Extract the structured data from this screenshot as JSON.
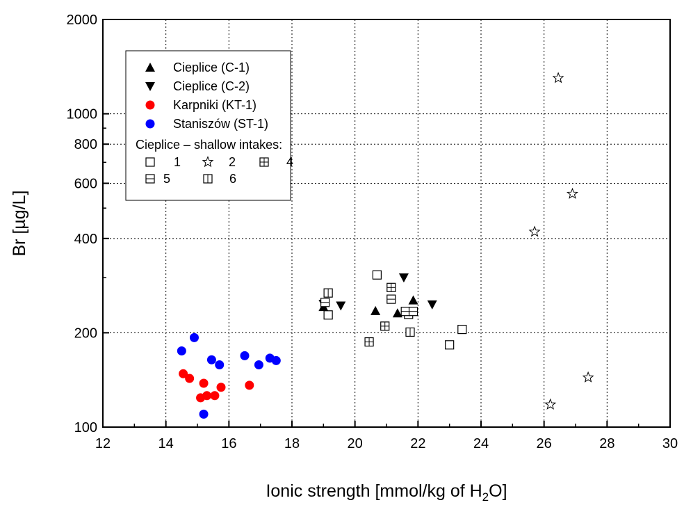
{
  "chart_data": {
    "type": "scatter",
    "xlabel": "Ionic strength [mmol/kg of H",
    "xlabel_sub": "2",
    "xlabel_end": "O]",
    "ylabel": "Br [µg/L]",
    "xlim": [
      12,
      30
    ],
    "ylim": [
      100,
      2000
    ],
    "y_scale": "log",
    "grid": true,
    "x_ticks": [
      12,
      14,
      16,
      18,
      20,
      22,
      24,
      26,
      28,
      30
    ],
    "y_ticks": [
      100,
      200,
      400,
      600,
      800,
      1000,
      2000
    ],
    "legend": {
      "placement": "top-left",
      "heading": "Cieplice – shallow intakes:"
    },
    "series": [
      {
        "name": "Cieplice (C-1)",
        "marker": "triangle-up",
        "color": "#000000",
        "filled": true,
        "points": [
          [
            19.0,
            242
          ],
          [
            20.65,
            235
          ],
          [
            21.35,
            231
          ],
          [
            21.85,
            254
          ]
        ]
      },
      {
        "name": "Cieplice (C-2)",
        "marker": "triangle-down",
        "color": "#000000",
        "filled": true,
        "points": [
          [
            19.0,
            247
          ],
          [
            19.55,
            244
          ],
          [
            21.55,
            300
          ],
          [
            22.45,
            246
          ]
        ]
      },
      {
        "name": "Karpniki (KT-1)",
        "marker": "circle",
        "color": "#ff0000",
        "filled": true,
        "points": [
          [
            14.55,
            148
          ],
          [
            14.75,
            143
          ],
          [
            15.1,
            124
          ],
          [
            15.2,
            138
          ],
          [
            15.3,
            126
          ],
          [
            15.55,
            126
          ],
          [
            15.75,
            134
          ],
          [
            16.65,
            136
          ]
        ]
      },
      {
        "name": "Staniszów (ST-1)",
        "marker": "circle",
        "color": "#0000ff",
        "filled": true,
        "points": [
          [
            14.5,
            175
          ],
          [
            14.9,
            193
          ],
          [
            15.2,
            110
          ],
          [
            15.45,
            164
          ],
          [
            15.7,
            158
          ],
          [
            16.5,
            169
          ],
          [
            16.95,
            158
          ],
          [
            17.3,
            166
          ],
          [
            17.5,
            163
          ]
        ]
      },
      {
        "name": "1",
        "marker": "square",
        "color": "#000000",
        "filled": false,
        "points": [
          [
            19.15,
            228
          ],
          [
            20.7,
            306
          ],
          [
            21.7,
            229
          ],
          [
            23.0,
            183
          ],
          [
            23.4,
            205
          ]
        ]
      },
      {
        "name": "2",
        "marker": "star",
        "color": "#000000",
        "filled": false,
        "points": [
          [
            25.7,
            420
          ],
          [
            26.2,
            118
          ],
          [
            26.45,
            1300
          ],
          [
            26.9,
            555
          ],
          [
            27.4,
            144
          ]
        ]
      },
      {
        "name": "4",
        "marker": "square-cross",
        "color": "#000000",
        "filled": false,
        "points": [
          [
            20.45,
            187
          ],
          [
            20.95,
            210
          ],
          [
            21.15,
            279
          ]
        ]
      },
      {
        "name": "5",
        "marker": "square-hline",
        "color": "#000000",
        "filled": false,
        "points": [
          [
            19.05,
            250
          ],
          [
            21.15,
            256
          ],
          [
            21.6,
            234
          ],
          [
            21.85,
            234
          ]
        ]
      },
      {
        "name": "6",
        "marker": "square-vline",
        "color": "#000000",
        "filled": false,
        "points": [
          [
            19.15,
            268
          ],
          [
            21.75,
            201
          ]
        ]
      }
    ]
  }
}
